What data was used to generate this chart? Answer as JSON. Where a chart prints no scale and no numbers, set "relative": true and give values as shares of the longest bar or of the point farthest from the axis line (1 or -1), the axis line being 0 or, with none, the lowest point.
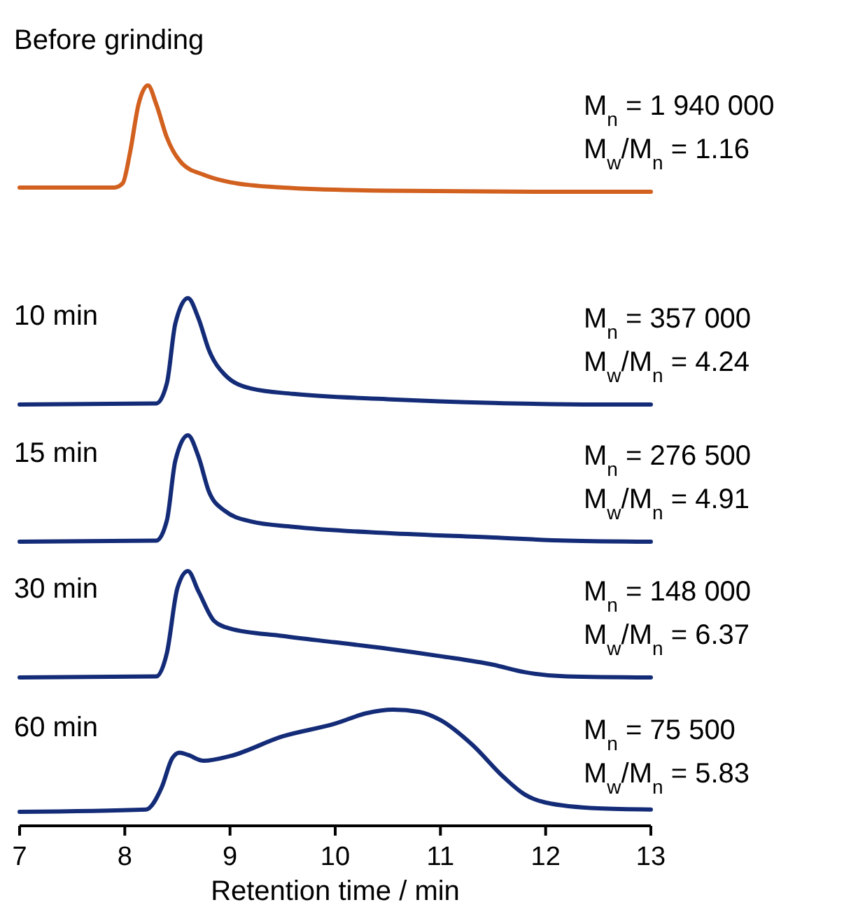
{
  "chart_data": [
    {
      "type": "line",
      "title": "Before grinding",
      "relative": true,
      "xlim": [
        7,
        13
      ],
      "tick_labels": false,
      "annotations": [
        "M$_{n}$ = 1 940 000",
        "M$_{w}$/M$_{n}$ = 1.16"
      ],
      "color": "#d2601f",
      "x": [
        7,
        7.9,
        7.98,
        8.05,
        8.13,
        8.22,
        8.3,
        8.4,
        8.55,
        8.75,
        9,
        9.5,
        10.5,
        12,
        13
      ],
      "values": [
        0.04,
        0.04,
        0.08,
        0.37,
        0.82,
        1,
        0.82,
        0.51,
        0.26,
        0.16,
        0.09,
        0.04,
        0.01,
        0,
        0
      ]
    },
    {
      "type": "line",
      "title": "10 min",
      "relative": true,
      "xlim": [
        7,
        13
      ],
      "tick_labels": false,
      "annotations": [
        "M$_{n}$ = 357 000",
        "M$_{w}$/M$_{n}$ = 4.24"
      ],
      "color": "#142c78",
      "x": [
        7,
        8.3,
        8.4,
        8.48,
        8.6,
        8.7,
        8.8,
        8.95,
        9.2,
        9.6,
        10.5,
        11.5,
        12.5,
        13
      ],
      "values": [
        0,
        0.01,
        0.2,
        0.76,
        1,
        0.81,
        0.51,
        0.28,
        0.15,
        0.1,
        0.05,
        0.015,
        0,
        0
      ]
    },
    {
      "type": "line",
      "title": "15 min",
      "relative": true,
      "xlim": [
        7,
        13
      ],
      "tick_labels": false,
      "annotations": [
        "M$_{n}$ = 276 500",
        "M$_{w}$/M$_{n}$ = 4.91"
      ],
      "color": "#142c78",
      "x": [
        7,
        8.3,
        8.4,
        8.48,
        8.6,
        8.7,
        8.8,
        8.95,
        9.2,
        9.6,
        10.5,
        11.5,
        12.2,
        13
      ],
      "values": [
        0,
        0.01,
        0.2,
        0.76,
        1,
        0.8,
        0.47,
        0.29,
        0.19,
        0.14,
        0.08,
        0.04,
        0.01,
        0
      ]
    },
    {
      "type": "line",
      "title": "30 min",
      "relative": true,
      "xlim": [
        7,
        13
      ],
      "tick_labels": false,
      "annotations": [
        "M$_{n}$ = 148 000",
        "M$_{w}$/M$_{n}$ = 6.37"
      ],
      "color": "#142c78",
      "x": [
        7,
        8.3,
        8.4,
        8.5,
        8.6,
        8.7,
        8.85,
        9,
        9.5,
        10,
        10.5,
        11,
        11.5,
        11.8,
        12.2,
        13
      ],
      "values": [
        0,
        0.01,
        0.23,
        0.84,
        1,
        0.81,
        0.53,
        0.46,
        0.39,
        0.33,
        0.27,
        0.2,
        0.12,
        0.05,
        0.01,
        0
      ]
    },
    {
      "type": "line",
      "title": "60 min",
      "relative": true,
      "xlim": [
        7,
        13
      ],
      "xticks": [
        7,
        8,
        9,
        10,
        11,
        12,
        13
      ],
      "xlabel": "Retention time / min",
      "annotations": [
        "M$_{n}$ = 75 500",
        "M$_{w}$/M$_{n}$ = 5.83"
      ],
      "color": "#142c78",
      "x": [
        7,
        8.2,
        8.35,
        8.45,
        8.52,
        8.6,
        8.75,
        9,
        9.5,
        10,
        10.3,
        10.55,
        10.8,
        11,
        11.3,
        11.6,
        11.8,
        12,
        12.5,
        13
      ],
      "values": [
        0.12,
        0.14,
        0.33,
        0.58,
        0.63,
        0.61,
        0.56,
        0.6,
        0.77,
        0.88,
        0.97,
        1,
        0.98,
        0.91,
        0.7,
        0.42,
        0.27,
        0.2,
        0.15,
        0.14
      ]
    }
  ]
}
